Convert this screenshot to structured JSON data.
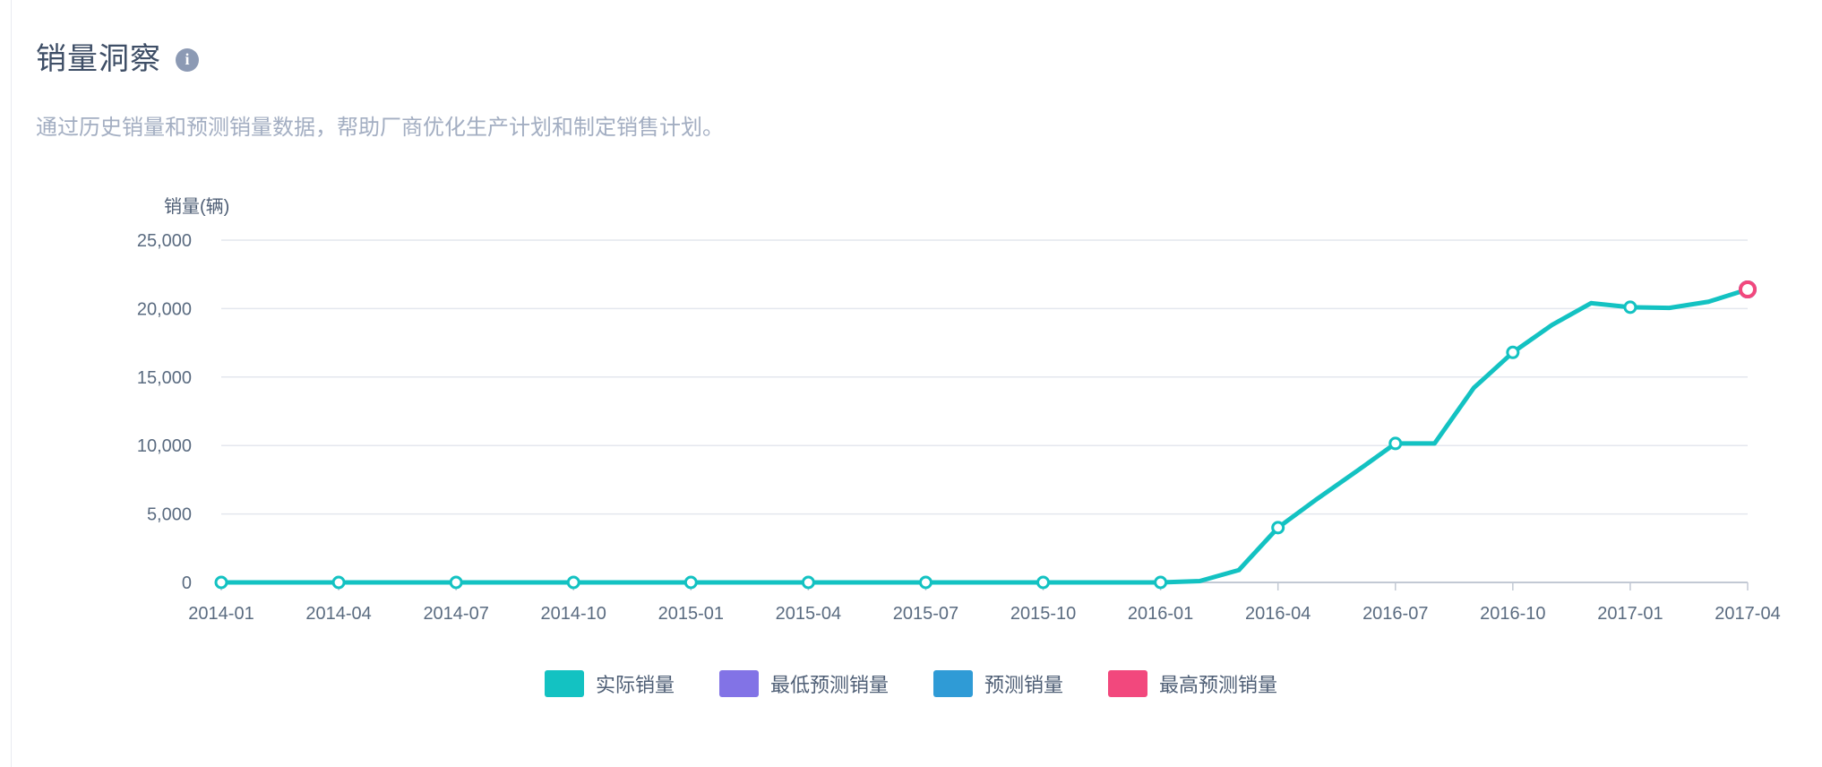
{
  "header": {
    "title": "销量洞察",
    "info_icon": "info",
    "subtitle": "通过历史销量和预测销量数据，帮助厂商优化生产计划和制定销售计划。"
  },
  "chart_data": {
    "type": "line",
    "title": "销量洞察",
    "xlabel": "",
    "ylabel": "销量(辆)",
    "ylim": [
      0,
      25000
    ],
    "y_ticks": [
      "0",
      "5,000",
      "10,000",
      "15,000",
      "20,000",
      "25,000"
    ],
    "x_tick_interval": 3,
    "grid": true,
    "legend_position": "bottom",
    "grid_color": "#E4E7EE",
    "axis_color": "#C2C9D4",
    "tick_color": "#5A6B80",
    "categories": [
      "2014-01",
      "2014-02",
      "2014-03",
      "2014-04",
      "2014-05",
      "2014-06",
      "2014-07",
      "2014-08",
      "2014-09",
      "2014-10",
      "2014-11",
      "2014-12",
      "2015-01",
      "2015-02",
      "2015-03",
      "2015-04",
      "2015-05",
      "2015-06",
      "2015-07",
      "2015-08",
      "2015-09",
      "2015-10",
      "2015-11",
      "2015-12",
      "2016-01",
      "2016-02",
      "2016-03",
      "2016-04",
      "2016-05",
      "2016-06",
      "2016-07",
      "2016-08",
      "2016-09",
      "2016-10",
      "2016-11",
      "2016-12",
      "2017-01",
      "2017-02",
      "2017-03",
      "2017-04"
    ],
    "series": [
      {
        "name": "实际销量",
        "color": "#13C2C2",
        "marker": "hollow-circle",
        "values": [
          0,
          0,
          0,
          0,
          0,
          0,
          0,
          0,
          0,
          0,
          0,
          0,
          0,
          0,
          0,
          0,
          0,
          0,
          0,
          0,
          0,
          0,
          0,
          0,
          0,
          100,
          900,
          4000,
          6100,
          8100,
          10150,
          10150,
          14200,
          16800,
          18800,
          20400,
          20100,
          20050,
          20500,
          21400
        ]
      },
      {
        "name": "最低预测销量",
        "color": "#8273E6",
        "marker": "hollow-circle",
        "points": [
          {
            "x": "2017-04",
            "y": 21400
          }
        ]
      },
      {
        "name": "预测销量",
        "color": "#2F9BD6",
        "marker": "hollow-circle",
        "points": [
          {
            "x": "2017-04",
            "y": 21400
          }
        ]
      },
      {
        "name": "最高预测销量",
        "color": "#F2487D",
        "marker": "hollow-circle",
        "points": [
          {
            "x": "2017-04",
            "y": 21400
          }
        ]
      }
    ]
  }
}
